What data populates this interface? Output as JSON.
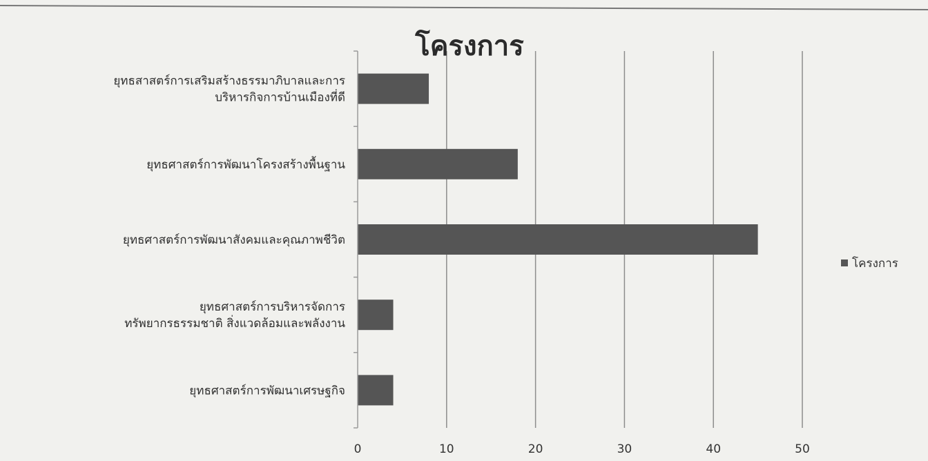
{
  "chart_data": {
    "type": "bar",
    "orientation": "horizontal",
    "title": "โครงการ",
    "categories": [
      [
        "ยุทธสาสตร์การเสริมสร้างธรรมาภิบาลและการ",
        "บริหารกิจการบ้านเมืองที่ดี"
      ],
      [
        "ยุทธศาสตร์การพัฒนาโครงสร้างพื้นฐาน"
      ],
      [
        "ยุทธศาสตร์การพัฒนาสังคมและคุณภาพชีวิต"
      ],
      [
        "ยุทธศาสตร์การบริหารจัดการ",
        "ทรัพยากรธรรมชาติ สิ่งแวดล้อมและพลังงาน"
      ],
      [
        "ยุทธศาสตร์การพัฒนาเศรษฐกิจ"
      ]
    ],
    "series": [
      {
        "name": "โครงการ",
        "values": [
          8,
          18,
          45,
          4,
          4
        ]
      }
    ],
    "xlim": [
      0,
      50
    ],
    "xticks": [
      "0",
      "10",
      "20",
      "30",
      "40",
      "50"
    ],
    "grid": true,
    "legend": "right",
    "colors": {
      "bar": "#555555",
      "grid": "#8c8c8c",
      "axis": "#9a9a9a"
    }
  }
}
